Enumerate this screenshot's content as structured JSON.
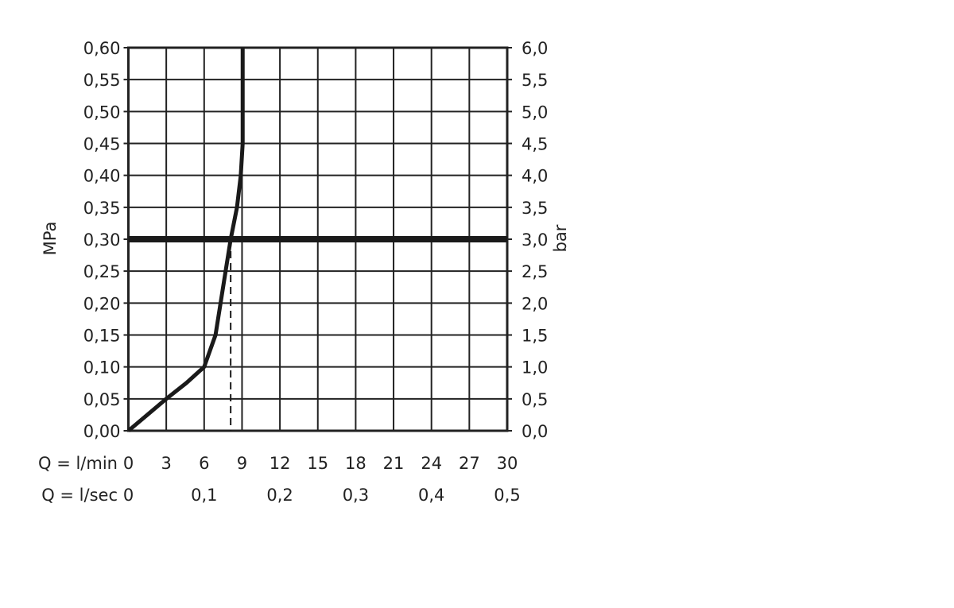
{
  "chart_data": {
    "type": "line",
    "ylabel_left": "MPa",
    "ylabel_right": "bar",
    "xlabel_rows": [
      "Q = l/min",
      "Q = l/sec"
    ],
    "xlim": [
      0,
      30
    ],
    "ylim": [
      0,
      0.6
    ],
    "grid": true,
    "x_ticks": [
      "0",
      "3",
      "6",
      "9",
      "12",
      "15",
      "18",
      "21",
      "24",
      "27",
      "30"
    ],
    "x_ticks_sec": [
      {
        "v": 0,
        "label": "0"
      },
      {
        "v": 6,
        "label": "0,1"
      },
      {
        "v": 12,
        "label": "0,2"
      },
      {
        "v": 18,
        "label": "0,3"
      },
      {
        "v": 24,
        "label": "0,4"
      },
      {
        "v": 30,
        "label": "0,5"
      }
    ],
    "y_ticks_left": [
      "0,00",
      "0,05",
      "0,10",
      "0,15",
      "0,20",
      "0,25",
      "0,30",
      "0,35",
      "0,40",
      "0,45",
      "0,50",
      "0,55",
      "0,60"
    ],
    "y_ticks_right": [
      "0,0",
      "0,5",
      "1,0",
      "1,5",
      "2,0",
      "2,5",
      "3,0",
      "3,5",
      "4,0",
      "4,5",
      "5,0",
      "5,5",
      "6,0"
    ],
    "series": [
      {
        "x": [
          0,
          1.5,
          3,
          4.6,
          6,
          6.9,
          7.3,
          7.7,
          8.1,
          8.6,
          8.9,
          9.05,
          9.05
        ],
        "y": [
          0,
          0.025,
          0.05,
          0.075,
          0.1,
          0.15,
          0.2,
          0.25,
          0.3,
          0.35,
          0.4,
          0.45,
          0.6
        ]
      }
    ],
    "reference_line_pressure": 0.3,
    "dashed_flow_marker": 8.1
  }
}
